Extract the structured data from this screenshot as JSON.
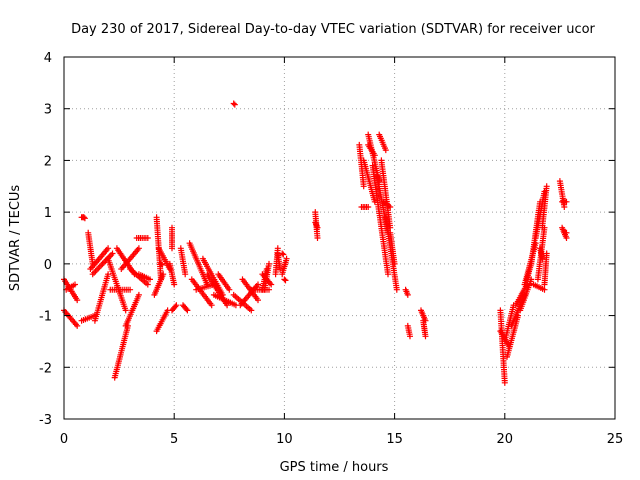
{
  "chart_data": {
    "type": "scatter",
    "title": "Day 230 of 2017, Sidereal Day-to-day VTEC variation (SDTVAR) for receiver ucor",
    "xlabel": "GPS time / hours",
    "ylabel": "SDTVAR / TECUs",
    "xlim": [
      0,
      25
    ],
    "ylim": [
      -3,
      4
    ],
    "xticks": [
      0,
      5,
      10,
      15,
      20,
      25
    ],
    "yticks": [
      -3,
      -2,
      -1,
      0,
      1,
      2,
      3,
      4
    ],
    "grid": true,
    "marker": "+",
    "color": "#ff0000",
    "series": [
      {
        "name": "SDTVAR",
        "segments": [
          {
            "from": [
              0.0,
              -0.3
            ],
            "to": [
              0.6,
              -0.7
            ]
          },
          {
            "from": [
              0.0,
              -0.9
            ],
            "to": [
              0.6,
              -1.2
            ]
          },
          {
            "from": [
              0.1,
              -0.5
            ],
            "to": [
              0.5,
              -0.4
            ]
          },
          {
            "from": [
              0.8,
              0.9
            ],
            "to": [
              0.9,
              0.9
            ]
          },
          {
            "from": [
              0.8,
              -1.1
            ],
            "to": [
              1.4,
              -1.0
            ]
          },
          {
            "from": [
              1.1,
              0.6
            ],
            "to": [
              1.3,
              0.0
            ]
          },
          {
            "from": [
              1.2,
              -0.1
            ],
            "to": [
              2.0,
              0.3
            ]
          },
          {
            "from": [
              1.3,
              -0.2
            ],
            "to": [
              2.2,
              0.2
            ]
          },
          {
            "from": [
              1.4,
              -1.1
            ],
            "to": [
              2.0,
              -0.2
            ]
          },
          {
            "from": [
              2.0,
              0.1
            ],
            "to": [
              2.8,
              -0.9
            ]
          },
          {
            "from": [
              2.1,
              -0.5
            ],
            "to": [
              3.0,
              -0.5
            ]
          },
          {
            "from": [
              2.3,
              -2.2
            ],
            "to": [
              2.9,
              -1.2
            ]
          },
          {
            "from": [
              2.8,
              -1.2
            ],
            "to": [
              3.4,
              -0.6
            ]
          },
          {
            "from": [
              2.4,
              0.3
            ],
            "to": [
              3.2,
              -0.2
            ]
          },
          {
            "from": [
              2.6,
              -0.1
            ],
            "to": [
              3.4,
              0.3
            ]
          },
          {
            "from": [
              3.0,
              -0.1
            ],
            "to": [
              3.8,
              -0.4
            ]
          },
          {
            "from": [
              3.3,
              0.5
            ],
            "to": [
              3.8,
              0.5
            ]
          },
          {
            "from": [
              3.4,
              -0.2
            ],
            "to": [
              3.9,
              -0.3
            ]
          },
          {
            "from": [
              4.2,
              0.9
            ],
            "to": [
              4.4,
              -0.3
            ]
          },
          {
            "from": [
              4.1,
              -0.6
            ],
            "to": [
              4.5,
              -0.2
            ]
          },
          {
            "from": [
              4.2,
              -1.3
            ],
            "to": [
              4.7,
              -0.9
            ]
          },
          {
            "from": [
              4.3,
              0.3
            ],
            "to": [
              4.8,
              -0.1
            ]
          },
          {
            "from": [
              4.9,
              0.7
            ],
            "to": [
              4.9,
              0.3
            ]
          },
          {
            "from": [
              4.8,
              0.0
            ],
            "to": [
              5.0,
              -0.4
            ]
          },
          {
            "from": [
              4.9,
              -0.9
            ],
            "to": [
              5.1,
              -0.8
            ]
          },
          {
            "from": [
              5.3,
              0.3
            ],
            "to": [
              5.5,
              -0.2
            ]
          },
          {
            "from": [
              5.4,
              -0.8
            ],
            "to": [
              5.6,
              -0.9
            ]
          },
          {
            "from": [
              5.7,
              0.4
            ],
            "to": [
              6.5,
              -0.4
            ]
          },
          {
            "from": [
              5.8,
              -0.3
            ],
            "to": [
              6.7,
              -0.8
            ]
          },
          {
            "from": [
              6.0,
              -0.5
            ],
            "to": [
              6.8,
              -0.4
            ]
          },
          {
            "from": [
              6.3,
              0.1
            ],
            "to": [
              7.2,
              -0.6
            ]
          },
          {
            "from": [
              6.5,
              -0.2
            ],
            "to": [
              7.4,
              -0.8
            ]
          },
          {
            "from": [
              6.8,
              -0.6
            ],
            "to": [
              7.8,
              -0.8
            ]
          },
          {
            "from": [
              7.0,
              -0.2
            ],
            "to": [
              7.5,
              -0.5
            ]
          },
          {
            "from": [
              7.7,
              -0.6
            ],
            "to": [
              8.5,
              -0.9
            ]
          },
          {
            "from": [
              8.0,
              -0.8
            ],
            "to": [
              8.8,
              -0.4
            ]
          },
          {
            "from": [
              8.1,
              -0.3
            ],
            "to": [
              8.8,
              -0.7
            ]
          },
          {
            "from": [
              8.5,
              -0.5
            ],
            "to": [
              9.3,
              -0.5
            ]
          },
          {
            "from": [
              9.0,
              -0.5
            ],
            "to": [
              9.2,
              -0.1
            ]
          },
          {
            "from": [
              9.0,
              -0.2
            ],
            "to": [
              9.4,
              -0.4
            ]
          },
          {
            "from": [
              9.1,
              -0.5
            ],
            "to": [
              9.3,
              0.0
            ]
          },
          {
            "from": [
              9.6,
              -0.2
            ],
            "to": [
              9.7,
              0.3
            ]
          },
          {
            "from": [
              9.7,
              0.2
            ],
            "to": [
              9.8,
              -0.1
            ]
          },
          {
            "from": [
              9.9,
              -0.2
            ],
            "to": [
              10.1,
              0.1
            ]
          },
          {
            "from": [
              11.4,
              1.0
            ],
            "to": [
              11.5,
              0.5
            ]
          },
          {
            "from": [
              11.4,
              0.8
            ],
            "to": [
              11.5,
              0.7
            ]
          },
          {
            "from": [
              13.4,
              2.3
            ],
            "to": [
              13.6,
              1.5
            ]
          },
          {
            "from": [
              13.5,
              1.1
            ],
            "to": [
              13.8,
              1.1
            ]
          },
          {
            "from": [
              13.6,
              2.0
            ],
            "to": [
              14.1,
              1.2
            ]
          },
          {
            "from": [
              13.8,
              2.5
            ],
            "to": [
              14.3,
              1.6
            ]
          },
          {
            "from": [
              13.8,
              2.3
            ],
            "to": [
              14.1,
              2.1
            ]
          },
          {
            "from": [
              14.0,
              1.9
            ],
            "to": [
              14.7,
              -0.2
            ]
          },
          {
            "from": [
              14.2,
              1.7
            ],
            "to": [
              14.7,
              0.6
            ]
          },
          {
            "from": [
              14.3,
              2.5
            ],
            "to": [
              14.6,
              2.2
            ]
          },
          {
            "from": [
              14.4,
              2.0
            ],
            "to": [
              14.8,
              0.7
            ]
          },
          {
            "from": [
              14.6,
              0.9
            ],
            "to": [
              15.1,
              -0.5
            ]
          },
          {
            "from": [
              14.5,
              1.2
            ],
            "to": [
              14.8,
              1.1
            ]
          },
          {
            "from": [
              14.8,
              0.6
            ],
            "to": [
              15.0,
              0.0
            ]
          },
          {
            "from": [
              15.5,
              -0.5
            ],
            "to": [
              15.6,
              -0.6
            ]
          },
          {
            "from": [
              15.6,
              -1.2
            ],
            "to": [
              15.7,
              -1.4
            ]
          },
          {
            "from": [
              16.2,
              -0.9
            ],
            "to": [
              16.4,
              -1.1
            ]
          },
          {
            "from": [
              16.3,
              -1.1
            ],
            "to": [
              16.4,
              -1.4
            ]
          },
          {
            "from": [
              19.8,
              -0.9
            ],
            "to": [
              20.0,
              -2.3
            ]
          },
          {
            "from": [
              19.8,
              -1.3
            ],
            "to": [
              20.2,
              -1.6
            ]
          },
          {
            "from": [
              20.0,
              -1.5
            ],
            "to": [
              20.4,
              -0.8
            ]
          },
          {
            "from": [
              20.1,
              -1.8
            ],
            "to": [
              20.6,
              -1.0
            ]
          },
          {
            "from": [
              20.3,
              -1.2
            ],
            "to": [
              20.9,
              -0.6
            ]
          },
          {
            "from": [
              20.5,
              -0.8
            ],
            "to": [
              21.0,
              -0.4
            ]
          },
          {
            "from": [
              20.7,
              -0.9
            ],
            "to": [
              21.2,
              -0.3
            ]
          },
          {
            "from": [
              20.9,
              -0.4
            ],
            "to": [
              21.4,
              0.4
            ]
          },
          {
            "from": [
              21.0,
              -0.3
            ],
            "to": [
              21.2,
              0.0
            ]
          },
          {
            "from": [
              21.2,
              0.0
            ],
            "to": [
              21.6,
              1.2
            ]
          },
          {
            "from": [
              21.3,
              -0.4
            ],
            "to": [
              21.8,
              -0.5
            ]
          },
          {
            "from": [
              21.4,
              0.5
            ],
            "to": [
              21.8,
              1.4
            ]
          },
          {
            "from": [
              21.5,
              -0.3
            ],
            "to": [
              21.8,
              0.7
            ]
          },
          {
            "from": [
              21.6,
              0.3
            ],
            "to": [
              21.7,
              0.1
            ]
          },
          {
            "from": [
              21.7,
              0.7
            ],
            "to": [
              21.9,
              1.5
            ]
          },
          {
            "from": [
              21.8,
              -0.4
            ],
            "to": [
              21.9,
              0.2
            ]
          },
          {
            "from": [
              22.5,
              1.6
            ],
            "to": [
              22.7,
              1.1
            ]
          },
          {
            "from": [
              22.6,
              1.2
            ],
            "to": [
              22.8,
              1.2
            ]
          },
          {
            "from": [
              22.6,
              0.7
            ],
            "to": [
              22.8,
              0.5
            ]
          },
          {
            "from": [
              22.7,
              0.6
            ],
            "to": [
              22.8,
              0.6
            ]
          }
        ],
        "isolated": [
          [
            7.7,
            3.1
          ],
          [
            0.9,
            0.9
          ],
          [
            4.4,
            0.0
          ],
          [
            10.0,
            -0.3
          ],
          [
            9.9,
            0.2
          ]
        ]
      }
    ]
  }
}
